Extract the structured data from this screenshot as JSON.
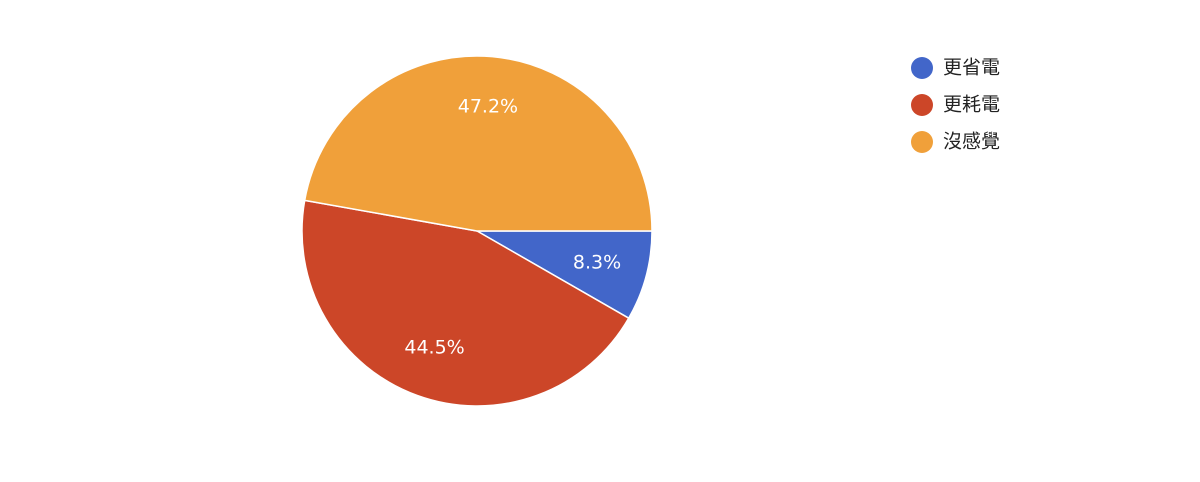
{
  "chart_data": {
    "type": "pie",
    "categories": [
      "更省電",
      "更耗電",
      "沒感覺"
    ],
    "values": [
      8.3,
      44.5,
      47.2
    ],
    "value_labels": [
      "8.3%",
      "44.5%",
      "47.2%"
    ],
    "colors": [
      "#4266c9",
      "#cc4628",
      "#f0a03a"
    ],
    "legend": "right"
  }
}
